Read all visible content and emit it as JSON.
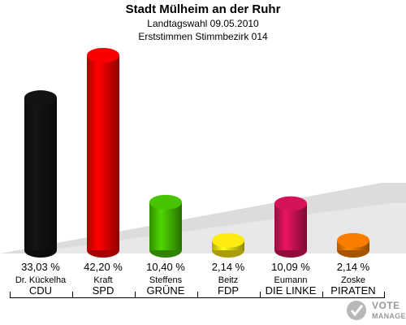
{
  "header": {
    "title": "Stadt Mülheim an der Ruhr",
    "subtitle1": "Landtagswahl 09.05.2010",
    "subtitle2": "Erststimmen Stimmbezirk 014"
  },
  "chart_data": {
    "type": "bar",
    "title": "Stadt Mülheim an der Ruhr",
    "categories": [
      "CDU",
      "SPD",
      "GRÜNE",
      "FDP",
      "DIE LINKE",
      "PIRATEN"
    ],
    "candidates": [
      "Dr. Kückelha",
      "Kraft",
      "Steffens",
      "Beitz",
      "Eumann",
      "Zoske"
    ],
    "values": [
      33.03,
      42.2,
      10.4,
      2.14,
      10.09,
      2.14
    ],
    "value_labels": [
      "33,03 %",
      "42,20 %",
      "10,40 %",
      "2,14 %",
      "10,09 %",
      "2,14 %"
    ],
    "colors": [
      "#111111",
      "#ee0000",
      "#44bb00",
      "#f2e011",
      "#cc1155",
      "#ee7700"
    ],
    "ylim": [
      0,
      42.2
    ],
    "grid": false,
    "legend": "none"
  },
  "logo": {
    "line1": "VOTE",
    "line2": "MANAGER"
  }
}
